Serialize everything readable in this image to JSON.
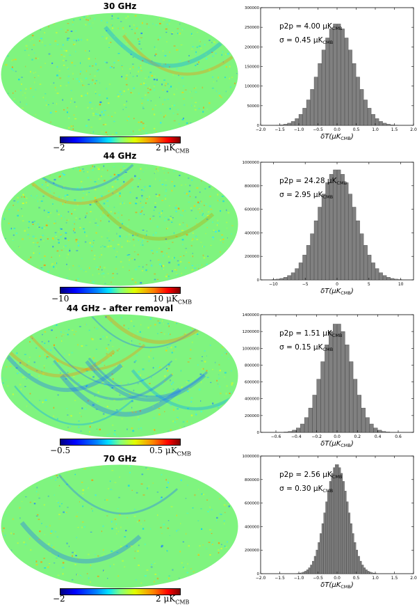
{
  "panels": [
    {
      "title": "30 GHz",
      "colorbar": {
        "min": "−2",
        "max": "2 μK",
        "max_sub": "CMB"
      },
      "hist": {
        "p2p_label": "p2p = 4.00 μK",
        "p2p_sub": "CMB",
        "sigma_label": "σ = 0.45 μK",
        "sigma_sub": "CMB",
        "xlabel": "δT(μK",
        "xlabel_sub": "CMB",
        "xlabel_end": ")",
        "xlim": [
          -2.0,
          2.0
        ],
        "xticks": [
          -2.0,
          -1.5,
          -1.0,
          -0.5,
          0.0,
          0.5,
          1.0,
          1.5,
          2.0
        ],
        "xtick_labels": [
          "−2.0",
          "−1.5",
          "−1.0",
          "−0.5",
          "0.0",
          "0.5",
          "1.0",
          "1.5",
          "2.0"
        ],
        "ylim": [
          0,
          300000
        ],
        "yticks": [
          0,
          50000,
          100000,
          150000,
          200000,
          250000,
          300000
        ],
        "ytick_labels": [
          "0",
          "50000",
          "100000",
          "150000",
          "200000",
          "250000",
          "300000"
        ],
        "peak": 260000,
        "sigma": 0.45,
        "bin_width": 0.1
      }
    },
    {
      "title": "44 GHz",
      "colorbar": {
        "min": "−10",
        "max": "10 μK",
        "max_sub": "CMB"
      },
      "hist": {
        "p2p_label": "p2p = 24.28 μK",
        "p2p_sub": "CMB",
        "sigma_label": "σ = 2.95 μK",
        "sigma_sub": "CMB",
        "xlabel": "δT(μK",
        "xlabel_sub": "CMB",
        "xlabel_end": ")",
        "xlim": [
          -12,
          12
        ],
        "xticks": [
          -10,
          -5,
          0,
          5,
          10
        ],
        "xtick_labels": [
          "−10",
          "−5",
          "0",
          "5",
          "10"
        ],
        "ylim": [
          0,
          1000000
        ],
        "yticks": [
          0,
          200000,
          400000,
          600000,
          800000,
          1000000
        ],
        "ytick_labels": [
          "0",
          "200000",
          "400000",
          "600000",
          "800000",
          "1000000"
        ],
        "peak": 940000,
        "sigma": 2.95,
        "bin_width": 0.6
      }
    },
    {
      "title": "44 GHz - after removal",
      "colorbar": {
        "min": "−0.5",
        "max": "0.5 μK",
        "max_sub": "CMB"
      },
      "hist": {
        "p2p_label": "p2p = 1.51 μK",
        "p2p_sub": "CMB",
        "sigma_label": "σ = 0.15 μK",
        "sigma_sub": "CMB",
        "xlabel": "δT(μK",
        "xlabel_sub": "CMB",
        "xlabel_end": ")",
        "xlim": [
          -0.75,
          0.75
        ],
        "xticks": [
          -0.6,
          -0.4,
          -0.2,
          0.0,
          0.2,
          0.4,
          0.6
        ],
        "xtick_labels": [
          "−0.6",
          "−0.4",
          "−0.2",
          "0.0",
          "0.2",
          "0.4",
          "0.6"
        ],
        "ylim": [
          0,
          1400000
        ],
        "yticks": [
          0,
          200000,
          400000,
          600000,
          800000,
          1000000,
          1200000,
          1400000
        ],
        "ytick_labels": [
          "0",
          "200000",
          "400000",
          "600000",
          "800000",
          "1000000",
          "1200000",
          "1400000"
        ],
        "peak": 1300000,
        "sigma": 0.15,
        "bin_width": 0.04
      }
    },
    {
      "title": "70 GHz",
      "colorbar": {
        "min": "−2",
        "max": "2 μK",
        "max_sub": "CMB"
      },
      "hist": {
        "p2p_label": "p2p = 2.56 μK",
        "p2p_sub": "CMB",
        "sigma_label": "σ = 0.30 μK",
        "sigma_sub": "CMB",
        "xlabel": "δT(μK",
        "xlabel_sub": "CMB",
        "xlabel_end": ")",
        "xlim": [
          -2.0,
          2.0
        ],
        "xticks": [
          -2.0,
          -1.5,
          -1.0,
          -0.5,
          0.0,
          0.5,
          1.0,
          1.5,
          2.0
        ],
        "xtick_labels": [
          "−2.0",
          "−1.5",
          "−1.0",
          "−0.5",
          "0.0",
          "0.5",
          "1.0",
          "1.5",
          "2.0"
        ],
        "ylim": [
          0,
          1000000
        ],
        "yticks": [
          0,
          200000,
          400000,
          600000,
          800000,
          1000000
        ],
        "ytick_labels": [
          "0",
          "200000",
          "400000",
          "600000",
          "800000",
          "1000000"
        ],
        "peak": 930000,
        "sigma": 0.3,
        "bin_width": 0.05
      }
    }
  ],
  "chart_data": [
    {
      "type": "bar",
      "title": "30 GHz",
      "xlabel": "δT(μK_CMB)",
      "ylabel": "",
      "xlim": [
        -2.0,
        2.0
      ],
      "ylim": [
        0,
        300000
      ],
      "distribution": "gaussian",
      "peak": 260000,
      "sigma": 0.45,
      "p2p": 4.0
    },
    {
      "type": "bar",
      "title": "44 GHz",
      "xlabel": "δT(μK_CMB)",
      "ylabel": "",
      "xlim": [
        -12,
        12
      ],
      "ylim": [
        0,
        1000000
      ],
      "distribution": "gaussian",
      "peak": 940000,
      "sigma": 2.95,
      "p2p": 24.28
    },
    {
      "type": "bar",
      "title": "44 GHz - after removal",
      "xlabel": "δT(μK_CMB)",
      "ylabel": "",
      "xlim": [
        -0.75,
        0.75
      ],
      "ylim": [
        0,
        1400000
      ],
      "distribution": "gaussian",
      "peak": 1300000,
      "sigma": 0.15,
      "p2p": 1.51
    },
    {
      "type": "bar",
      "title": "70 GHz",
      "xlabel": "δT(μK_CMB)",
      "ylabel": "",
      "xlim": [
        -2.0,
        2.0
      ],
      "ylim": [
        0,
        1000000
      ],
      "distribution": "gaussian",
      "peak": 930000,
      "sigma": 0.3,
      "p2p": 2.56
    }
  ]
}
